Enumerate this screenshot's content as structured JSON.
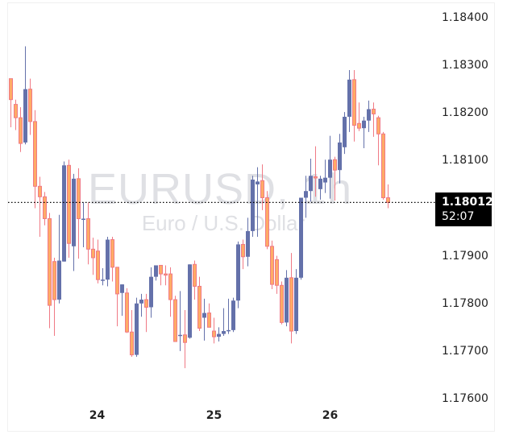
{
  "chart_data": {
    "type": "candlestick",
    "title": "EURUSD, 1h",
    "subtitle": "Euro / U.S. Dollar",
    "symbol": "EURUSD",
    "timeframe": "1h",
    "description": "Euro / U.S. Dollar",
    "xlabel": "",
    "ylabel": "",
    "ylim": [
      1.1753,
      1.1847
    ],
    "y_ticks": [
      "1.18400",
      "1.18300",
      "1.18200",
      "1.18100",
      "1.17900",
      "1.17800",
      "1.17700",
      "1.17600"
    ],
    "x_ticks": [
      {
        "label": "24",
        "candle_index": 18
      },
      {
        "label": "25",
        "candle_index": 42
      },
      {
        "label": "26",
        "candle_index": 66
      }
    ],
    "grid": false,
    "current_price": "1.18012",
    "countdown": "52:07",
    "colors": {
      "up_body": "#6471aa",
      "up_wick": "#6471aa",
      "down_body": "#ffab66",
      "down_border": "#f07a85",
      "down_wick": "#f07a85",
      "price_line": "#000000"
    },
    "candles": [
      {
        "o": 1.18272,
        "h": 1.18272,
        "c": 1.18228,
        "l": 1.1817
      },
      {
        "o": 1.18218,
        "h": 1.18228,
        "c": 1.1819,
        "l": 1.18164
      },
      {
        "o": 1.1819,
        "h": 1.18212,
        "c": 1.18136,
        "l": 1.18118
      },
      {
        "o": 1.18138,
        "h": 1.1834,
        "c": 1.1825,
        "l": 1.18134
      },
      {
        "o": 1.1825,
        "h": 1.18272,
        "c": 1.18182,
        "l": 1.18154
      },
      {
        "o": 1.18182,
        "h": 1.18206,
        "c": 1.18046,
        "l": 1.18
      },
      {
        "o": 1.18046,
        "h": 1.18066,
        "c": 1.18024,
        "l": 1.1794
      },
      {
        "o": 1.18024,
        "h": 1.18034,
        "c": 1.17978,
        "l": 1.17964
      },
      {
        "o": 1.17978,
        "h": 1.1799,
        "c": 1.17796,
        "l": 1.17748
      },
      {
        "o": 1.17888,
        "h": 1.17896,
        "c": 1.17808,
        "l": 1.17732
      },
      {
        "o": 1.17808,
        "h": 1.17986,
        "c": 1.1789,
        "l": 1.178
      },
      {
        "o": 1.17888,
        "h": 1.18098,
        "c": 1.1809,
        "l": 1.17922
      },
      {
        "o": 1.1809,
        "h": 1.18102,
        "c": 1.17926,
        "l": 1.17896
      },
      {
        "o": 1.1792,
        "h": 1.18072,
        "c": 1.18062,
        "l": 1.17868
      },
      {
        "o": 1.18062,
        "h": 1.18084,
        "c": 1.17978,
        "l": 1.17894
      },
      {
        "o": 1.17978,
        "h": 1.18012,
        "c": 1.17978,
        "l": 1.17918
      },
      {
        "o": 1.17978,
        "h": 1.18012,
        "c": 1.17914,
        "l": 1.17882
      },
      {
        "o": 1.17914,
        "h": 1.17938,
        "c": 1.17896,
        "l": 1.1786
      },
      {
        "o": 1.1791,
        "h": 1.17934,
        "c": 1.1785,
        "l": 1.17842
      },
      {
        "o": 1.1785,
        "h": 1.17874,
        "c": 1.1785,
        "l": 1.17838
      },
      {
        "o": 1.1785,
        "h": 1.1794,
        "c": 1.17934,
        "l": 1.17836
      },
      {
        "o": 1.17934,
        "h": 1.1794,
        "c": 1.17876,
        "l": 1.17846
      },
      {
        "o": 1.17876,
        "h": 1.17876,
        "c": 1.1782,
        "l": 1.17752
      },
      {
        "o": 1.17822,
        "h": 1.17832,
        "c": 1.1784,
        "l": 1.17774
      },
      {
        "o": 1.17822,
        "h": 1.17832,
        "c": 1.1774,
        "l": 1.17738
      },
      {
        "o": 1.1774,
        "h": 1.17786,
        "c": 1.17692,
        "l": 1.17688
      },
      {
        "o": 1.17692,
        "h": 1.17812,
        "c": 1.178,
        "l": 1.17688
      },
      {
        "o": 1.178,
        "h": 1.1782,
        "c": 1.17808,
        "l": 1.17772
      },
      {
        "o": 1.17808,
        "h": 1.1782,
        "c": 1.17792,
        "l": 1.1774
      },
      {
        "o": 1.17792,
        "h": 1.17876,
        "c": 1.17856,
        "l": 1.1777
      },
      {
        "o": 1.17856,
        "h": 1.1788,
        "c": 1.1788,
        "l": 1.17848
      },
      {
        "o": 1.1788,
        "h": 1.1788,
        "c": 1.17862,
        "l": 1.17838
      },
      {
        "o": 1.17862,
        "h": 1.1788,
        "c": 1.1786,
        "l": 1.17838
      },
      {
        "o": 1.17862,
        "h": 1.17876,
        "c": 1.17808,
        "l": 1.17772
      },
      {
        "o": 1.17808,
        "h": 1.17816,
        "c": 1.1772,
        "l": 1.17722
      },
      {
        "o": 1.17734,
        "h": 1.17826,
        "c": 1.17734,
        "l": 1.177
      },
      {
        "o": 1.17734,
        "h": 1.17786,
        "c": 1.17718,
        "l": 1.17664
      },
      {
        "o": 1.17728,
        "h": 1.1788,
        "c": 1.17882,
        "l": 1.17726
      },
      {
        "o": 1.17882,
        "h": 1.1789,
        "c": 1.17836,
        "l": 1.17808
      },
      {
        "o": 1.17836,
        "h": 1.17856,
        "c": 1.17748,
        "l": 1.17742
      },
      {
        "o": 1.1777,
        "h": 1.1781,
        "c": 1.1778,
        "l": 1.17722
      },
      {
        "o": 1.1778,
        "h": 1.178,
        "c": 1.1775,
        "l": 1.1775
      },
      {
        "o": 1.17742,
        "h": 1.1777,
        "c": 1.1773,
        "l": 1.17716
      },
      {
        "o": 1.1773,
        "h": 1.1775,
        "c": 1.17736,
        "l": 1.1772
      },
      {
        "o": 1.17736,
        "h": 1.1779,
        "c": 1.17742,
        "l": 1.17732
      },
      {
        "o": 1.17742,
        "h": 1.1781,
        "c": 1.17744,
        "l": 1.17736
      },
      {
        "o": 1.17744,
        "h": 1.17812,
        "c": 1.17806,
        "l": 1.1774
      },
      {
        "o": 1.17806,
        "h": 1.1793,
        "c": 1.17924,
        "l": 1.1779
      },
      {
        "o": 1.17924,
        "h": 1.17934,
        "c": 1.17898,
        "l": 1.17872
      },
      {
        "o": 1.17898,
        "h": 1.1798,
        "c": 1.17952,
        "l": 1.17878
      },
      {
        "o": 1.17952,
        "h": 1.18068,
        "c": 1.1806,
        "l": 1.1794
      },
      {
        "o": 1.1805,
        "h": 1.18086,
        "c": 1.18056,
        "l": 1.1794
      },
      {
        "o": 1.18058,
        "h": 1.18092,
        "c": 1.18022,
        "l": 1.17996
      },
      {
        "o": 1.18022,
        "h": 1.18036,
        "c": 1.1792,
        "l": 1.17914
      },
      {
        "o": 1.1792,
        "h": 1.17932,
        "c": 1.1784,
        "l": 1.1783
      },
      {
        "o": 1.17892,
        "h": 1.179,
        "c": 1.17838,
        "l": 1.1782
      },
      {
        "o": 1.17838,
        "h": 1.17846,
        "c": 1.1776,
        "l": 1.17756
      },
      {
        "o": 1.1776,
        "h": 1.1787,
        "c": 1.17854,
        "l": 1.17752
      },
      {
        "o": 1.17854,
        "h": 1.17906,
        "c": 1.17742,
        "l": 1.17716
      },
      {
        "o": 1.17742,
        "h": 1.17872,
        "c": 1.17854,
        "l": 1.17736
      },
      {
        "o": 1.17854,
        "h": 1.17872,
        "c": 1.18022,
        "l": 1.1785
      },
      {
        "o": 1.18022,
        "h": 1.18068,
        "c": 1.18036,
        "l": 1.1798
      },
      {
        "o": 1.18036,
        "h": 1.18104,
        "c": 1.18068,
        "l": 1.18014
      },
      {
        "o": 1.18066,
        "h": 1.1813,
        "c": 1.18064,
        "l": 1.18024
      },
      {
        "o": 1.1804,
        "h": 1.18068,
        "c": 1.18062,
        "l": 1.18018
      },
      {
        "o": 1.18054,
        "h": 1.18102,
        "c": 1.18064,
        "l": 1.18032
      },
      {
        "o": 1.18064,
        "h": 1.18152,
        "c": 1.18102,
        "l": 1.1802
      },
      {
        "o": 1.18102,
        "h": 1.18108,
        "c": 1.1808,
        "l": 1.18016
      },
      {
        "o": 1.1808,
        "h": 1.18156,
        "c": 1.18138,
        "l": 1.18052
      },
      {
        "o": 1.18128,
        "h": 1.18202,
        "c": 1.18192,
        "l": 1.18114
      },
      {
        "o": 1.18192,
        "h": 1.1829,
        "c": 1.1827,
        "l": 1.1816
      },
      {
        "o": 1.1827,
        "h": 1.1829,
        "c": 1.18174,
        "l": 1.1814
      },
      {
        "o": 1.18178,
        "h": 1.18222,
        "c": 1.18168,
        "l": 1.18162
      },
      {
        "o": 1.18168,
        "h": 1.18192,
        "c": 1.18184,
        "l": 1.18126
      },
      {
        "o": 1.18184,
        "h": 1.18226,
        "c": 1.18208,
        "l": 1.1816
      },
      {
        "o": 1.18208,
        "h": 1.18222,
        "c": 1.18198,
        "l": 1.1815
      },
      {
        "o": 1.1819,
        "h": 1.18194,
        "c": 1.18156,
        "l": 1.1809
      },
      {
        "o": 1.18156,
        "h": 1.1816,
        "c": 1.18022,
        "l": 1.18018
      },
      {
        "o": 1.18022,
        "h": 1.1805,
        "c": 1.18012,
        "l": 1.18
      }
    ]
  },
  "watermark": {
    "symbol_line": "EURUSD, 1h",
    "description_line": "Euro / U.S. Dollar"
  },
  "price_axis": {
    "ticks": [
      {
        "label": "1.18400",
        "value": 1.184
      },
      {
        "label": "1.18300",
        "value": 1.183
      },
      {
        "label": "1.18200",
        "value": 1.182
      },
      {
        "label": "1.18100",
        "value": 1.181
      },
      {
        "label": "1.17900",
        "value": 1.179
      },
      {
        "label": "1.17800",
        "value": 1.178
      },
      {
        "label": "1.17700",
        "value": 1.177
      },
      {
        "label": "1.17600",
        "value": 1.176
      }
    ],
    "last_price_label": "1.18012",
    "countdown_label": "52:07"
  },
  "time_axis": {
    "ticks": [
      {
        "label": "24"
      },
      {
        "label": "25"
      },
      {
        "label": "26"
      }
    ]
  }
}
